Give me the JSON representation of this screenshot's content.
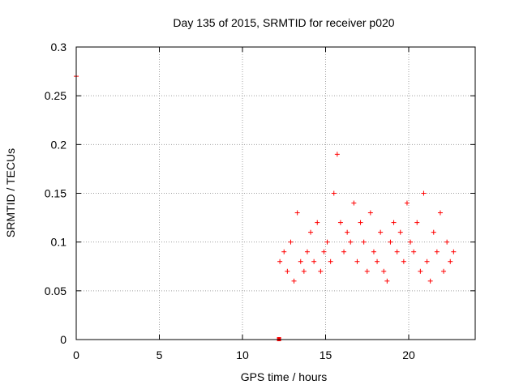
{
  "chart_data": {
    "type": "scatter",
    "title": "Day 135 of 2015, SRMTID for receiver p020",
    "xlabel": "GPS time / hours",
    "ylabel": "SRMTID / TECUs",
    "xlim": [
      0,
      24
    ],
    "ylim": [
      0,
      0.3
    ],
    "xticks": [
      0,
      5,
      10,
      15,
      20
    ],
    "xtick_labels": [
      "0",
      "5",
      "10",
      "15",
      "20"
    ],
    "yticks": [
      0,
      0.05,
      0.1,
      0.15,
      0.2,
      0.25,
      0.3
    ],
    "ytick_labels": [
      "0",
      "0.05",
      "0.1",
      "0.15",
      "0.2",
      "0.25",
      "0.3"
    ],
    "grid": true,
    "marker": "+",
    "color": "#ff0000",
    "series": [
      {
        "name": "SRMTID",
        "x": [
          0.0,
          12.25,
          12.5,
          12.7,
          12.9,
          13.1,
          13.3,
          13.5,
          13.7,
          13.9,
          14.1,
          14.3,
          14.5,
          14.7,
          14.9,
          15.1,
          15.3,
          15.5,
          15.7,
          15.9,
          16.1,
          16.3,
          16.5,
          16.7,
          16.9,
          17.1,
          17.3,
          17.5,
          17.7,
          17.9,
          18.1,
          18.3,
          18.5,
          18.7,
          18.9,
          19.1,
          19.3,
          19.5,
          19.7,
          19.9,
          20.1,
          20.3,
          20.5,
          20.7,
          20.9,
          21.1,
          21.3,
          21.5,
          21.7,
          21.9,
          22.1,
          22.3,
          22.5,
          22.7
        ],
        "y": [
          0.27,
          0.08,
          0.09,
          0.07,
          0.1,
          0.06,
          0.13,
          0.08,
          0.07,
          0.09,
          0.11,
          0.08,
          0.12,
          0.07,
          0.09,
          0.1,
          0.08,
          0.15,
          0.19,
          0.12,
          0.09,
          0.11,
          0.1,
          0.14,
          0.08,
          0.12,
          0.1,
          0.07,
          0.13,
          0.09,
          0.08,
          0.11,
          0.07,
          0.06,
          0.1,
          0.12,
          0.09,
          0.11,
          0.08,
          0.14,
          0.1,
          0.09,
          0.12,
          0.07,
          0.15,
          0.08,
          0.06,
          0.11,
          0.09,
          0.13,
          0.07,
          0.1,
          0.08,
          0.09
        ]
      }
    ],
    "annotations": [
      {
        "type": "square-marker",
        "x": 12.2,
        "y": 0.0
      }
    ]
  }
}
